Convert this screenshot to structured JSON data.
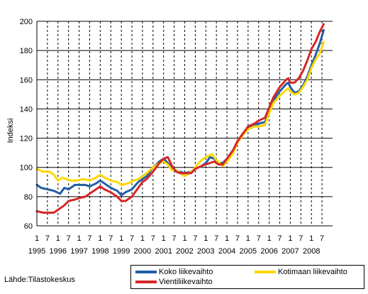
{
  "chart_data": {
    "type": "line",
    "title": "",
    "xlabel": "",
    "ylabel": "Indeksi",
    "ylim": [
      60,
      200
    ],
    "yticks": [
      60,
      80,
      100,
      120,
      140,
      160,
      180,
      200
    ],
    "xlim": [
      1995.0,
      2009.0
    ],
    "x_year_labels": [
      "1995",
      "1996",
      "1997",
      "1998",
      "1999",
      "2000",
      "2001",
      "2002",
      "2003",
      "2004",
      "2005",
      "2006",
      "2007",
      "2008"
    ],
    "x_month_labels": [
      "1",
      "7"
    ],
    "grid": "vertical-dashed-and-horizontal-solid",
    "legend_position": "bottom-right",
    "series": [
      {
        "name": "Koko liikevaihto",
        "color": "#1f5fa6",
        "points": [
          [
            1995.0,
            88
          ],
          [
            1995.2,
            86
          ],
          [
            1995.5,
            85
          ],
          [
            1995.8,
            84
          ],
          [
            1996.1,
            82
          ],
          [
            1996.3,
            86
          ],
          [
            1996.5,
            85
          ],
          [
            1996.8,
            88
          ],
          [
            1997.0,
            88
          ],
          [
            1997.3,
            88
          ],
          [
            1997.5,
            87
          ],
          [
            1997.8,
            89
          ],
          [
            1998.0,
            91
          ],
          [
            1998.2,
            89
          ],
          [
            1998.5,
            86
          ],
          [
            1998.8,
            84
          ],
          [
            1999.0,
            81
          ],
          [
            1999.2,
            83
          ],
          [
            1999.5,
            85
          ],
          [
            1999.8,
            90
          ],
          [
            2000.0,
            92
          ],
          [
            2000.2,
            94
          ],
          [
            2000.5,
            100
          ],
          [
            2000.8,
            104
          ],
          [
            2001.0,
            106
          ],
          [
            2001.2,
            103
          ],
          [
            2001.4,
            99
          ],
          [
            2001.6,
            97
          ],
          [
            2001.8,
            97
          ],
          [
            2002.0,
            96
          ],
          [
            2002.3,
            97
          ],
          [
            2002.5,
            99
          ],
          [
            2002.8,
            101
          ],
          [
            2003.0,
            103
          ],
          [
            2003.2,
            107
          ],
          [
            2003.4,
            106
          ],
          [
            2003.6,
            103
          ],
          [
            2003.8,
            103
          ],
          [
            2004.0,
            106
          ],
          [
            2004.3,
            112
          ],
          [
            2004.5,
            118
          ],
          [
            2004.8,
            124
          ],
          [
            2005.0,
            127
          ],
          [
            2005.3,
            129
          ],
          [
            2005.5,
            130
          ],
          [
            2005.8,
            131
          ],
          [
            2006.0,
            138
          ],
          [
            2006.2,
            146
          ],
          [
            2006.5,
            152
          ],
          [
            2006.8,
            157
          ],
          [
            2006.9,
            158
          ],
          [
            2007.0,
            155
          ],
          [
            2007.2,
            151
          ],
          [
            2007.4,
            152
          ],
          [
            2007.6,
            156
          ],
          [
            2007.8,
            162
          ],
          [
            2008.0,
            170
          ],
          [
            2008.2,
            177
          ],
          [
            2008.4,
            185
          ],
          [
            2008.58,
            194
          ]
        ]
      },
      {
        "name": "Kotimaan liikevaihto",
        "color": "#ffd700",
        "points": [
          [
            1995.0,
            99
          ],
          [
            1995.3,
            97
          ],
          [
            1995.6,
            97
          ],
          [
            1995.8,
            95
          ],
          [
            1996.0,
            91
          ],
          [
            1996.2,
            93
          ],
          [
            1996.4,
            92
          ],
          [
            1996.6,
            91
          ],
          [
            1996.9,
            91
          ],
          [
            1997.2,
            92
          ],
          [
            1997.5,
            91
          ],
          [
            1997.8,
            93
          ],
          [
            1998.0,
            95
          ],
          [
            1998.2,
            93
          ],
          [
            1998.5,
            91
          ],
          [
            1998.8,
            90
          ],
          [
            1999.0,
            88
          ],
          [
            1999.3,
            89
          ],
          [
            1999.6,
            91
          ],
          [
            1999.8,
            92
          ],
          [
            2000.0,
            94
          ],
          [
            2000.2,
            96
          ],
          [
            2000.5,
            100
          ],
          [
            2000.8,
            103
          ],
          [
            2001.0,
            104
          ],
          [
            2001.2,
            102
          ],
          [
            2001.4,
            98
          ],
          [
            2001.6,
            98
          ],
          [
            2001.8,
            96
          ],
          [
            2002.0,
            94
          ],
          [
            2002.2,
            96
          ],
          [
            2002.4,
            98
          ],
          [
            2002.6,
            102
          ],
          [
            2002.8,
            105
          ],
          [
            2003.0,
            107
          ],
          [
            2003.3,
            109
          ],
          [
            2003.5,
            105
          ],
          [
            2003.8,
            101
          ],
          [
            2004.0,
            104
          ],
          [
            2004.3,
            110
          ],
          [
            2004.5,
            117
          ],
          [
            2004.8,
            123
          ],
          [
            2005.0,
            126
          ],
          [
            2005.3,
            128
          ],
          [
            2005.5,
            128
          ],
          [
            2005.8,
            129
          ],
          [
            2006.0,
            137
          ],
          [
            2006.2,
            144
          ],
          [
            2006.5,
            149
          ],
          [
            2006.8,
            153
          ],
          [
            2006.9,
            154
          ],
          [
            2007.0,
            152
          ],
          [
            2007.2,
            150
          ],
          [
            2007.4,
            151
          ],
          [
            2007.6,
            155
          ],
          [
            2007.8,
            160
          ],
          [
            2008.0,
            168
          ],
          [
            2008.2,
            174
          ],
          [
            2008.4,
            178
          ],
          [
            2008.58,
            186
          ]
        ]
      },
      {
        "name": "Vientiliikevaihto",
        "color": "#d62728",
        "points": [
          [
            1995.0,
            70
          ],
          [
            1995.3,
            69
          ],
          [
            1995.6,
            69
          ],
          [
            1995.8,
            69
          ],
          [
            1996.0,
            71
          ],
          [
            1996.3,
            74
          ],
          [
            1996.5,
            77
          ],
          [
            1996.8,
            78
          ],
          [
            1997.0,
            79
          ],
          [
            1997.3,
            80
          ],
          [
            1997.5,
            82
          ],
          [
            1997.8,
            85
          ],
          [
            1998.0,
            87
          ],
          [
            1998.2,
            85
          ],
          [
            1998.5,
            83
          ],
          [
            1998.8,
            80
          ],
          [
            1999.0,
            77
          ],
          [
            1999.2,
            77
          ],
          [
            1999.5,
            80
          ],
          [
            1999.8,
            86
          ],
          [
            2000.0,
            90
          ],
          [
            2000.2,
            92
          ],
          [
            2000.5,
            97
          ],
          [
            2000.8,
            103
          ],
          [
            2001.0,
            106
          ],
          [
            2001.2,
            107
          ],
          [
            2001.4,
            101
          ],
          [
            2001.6,
            97
          ],
          [
            2001.8,
            96
          ],
          [
            2002.0,
            96
          ],
          [
            2002.3,
            96
          ],
          [
            2002.5,
            99
          ],
          [
            2002.8,
            101
          ],
          [
            2003.0,
            102
          ],
          [
            2003.2,
            103
          ],
          [
            2003.4,
            104
          ],
          [
            2003.6,
            102
          ],
          [
            2003.8,
            102
          ],
          [
            2004.0,
            106
          ],
          [
            2004.3,
            112
          ],
          [
            2004.5,
            118
          ],
          [
            2004.8,
            124
          ],
          [
            2005.0,
            128
          ],
          [
            2005.3,
            130
          ],
          [
            2005.5,
            132
          ],
          [
            2005.8,
            134
          ],
          [
            2006.0,
            141
          ],
          [
            2006.2,
            148
          ],
          [
            2006.5,
            155
          ],
          [
            2006.8,
            160
          ],
          [
            2006.9,
            161
          ],
          [
            2007.0,
            158
          ],
          [
            2007.2,
            158
          ],
          [
            2007.4,
            161
          ],
          [
            2007.6,
            166
          ],
          [
            2007.8,
            173
          ],
          [
            2008.0,
            181
          ],
          [
            2008.2,
            186
          ],
          [
            2008.4,
            193
          ],
          [
            2008.58,
            198
          ]
        ]
      }
    ],
    "source": "Lähde:Tilastokeskus"
  }
}
